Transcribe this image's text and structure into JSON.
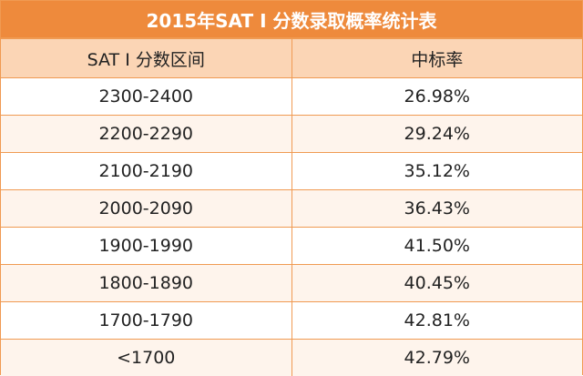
{
  "header": {
    "title": "2015年SAT I 分数录取概率统计表"
  },
  "table": {
    "columns": [
      "SAT I 分数区间",
      "中标率"
    ],
    "rows": [
      [
        "2300-2400",
        "26.98%"
      ],
      [
        "2200-2290",
        "29.24%"
      ],
      [
        "2100-2190",
        "35.12%"
      ],
      [
        "2000-2090",
        "36.43%"
      ],
      [
        "1900-1990",
        "41.50%"
      ],
      [
        "1800-1890",
        "40.45%"
      ],
      [
        "1700-1790",
        "42.81%"
      ],
      [
        "<1700",
        "42.79%"
      ]
    ]
  }
}
